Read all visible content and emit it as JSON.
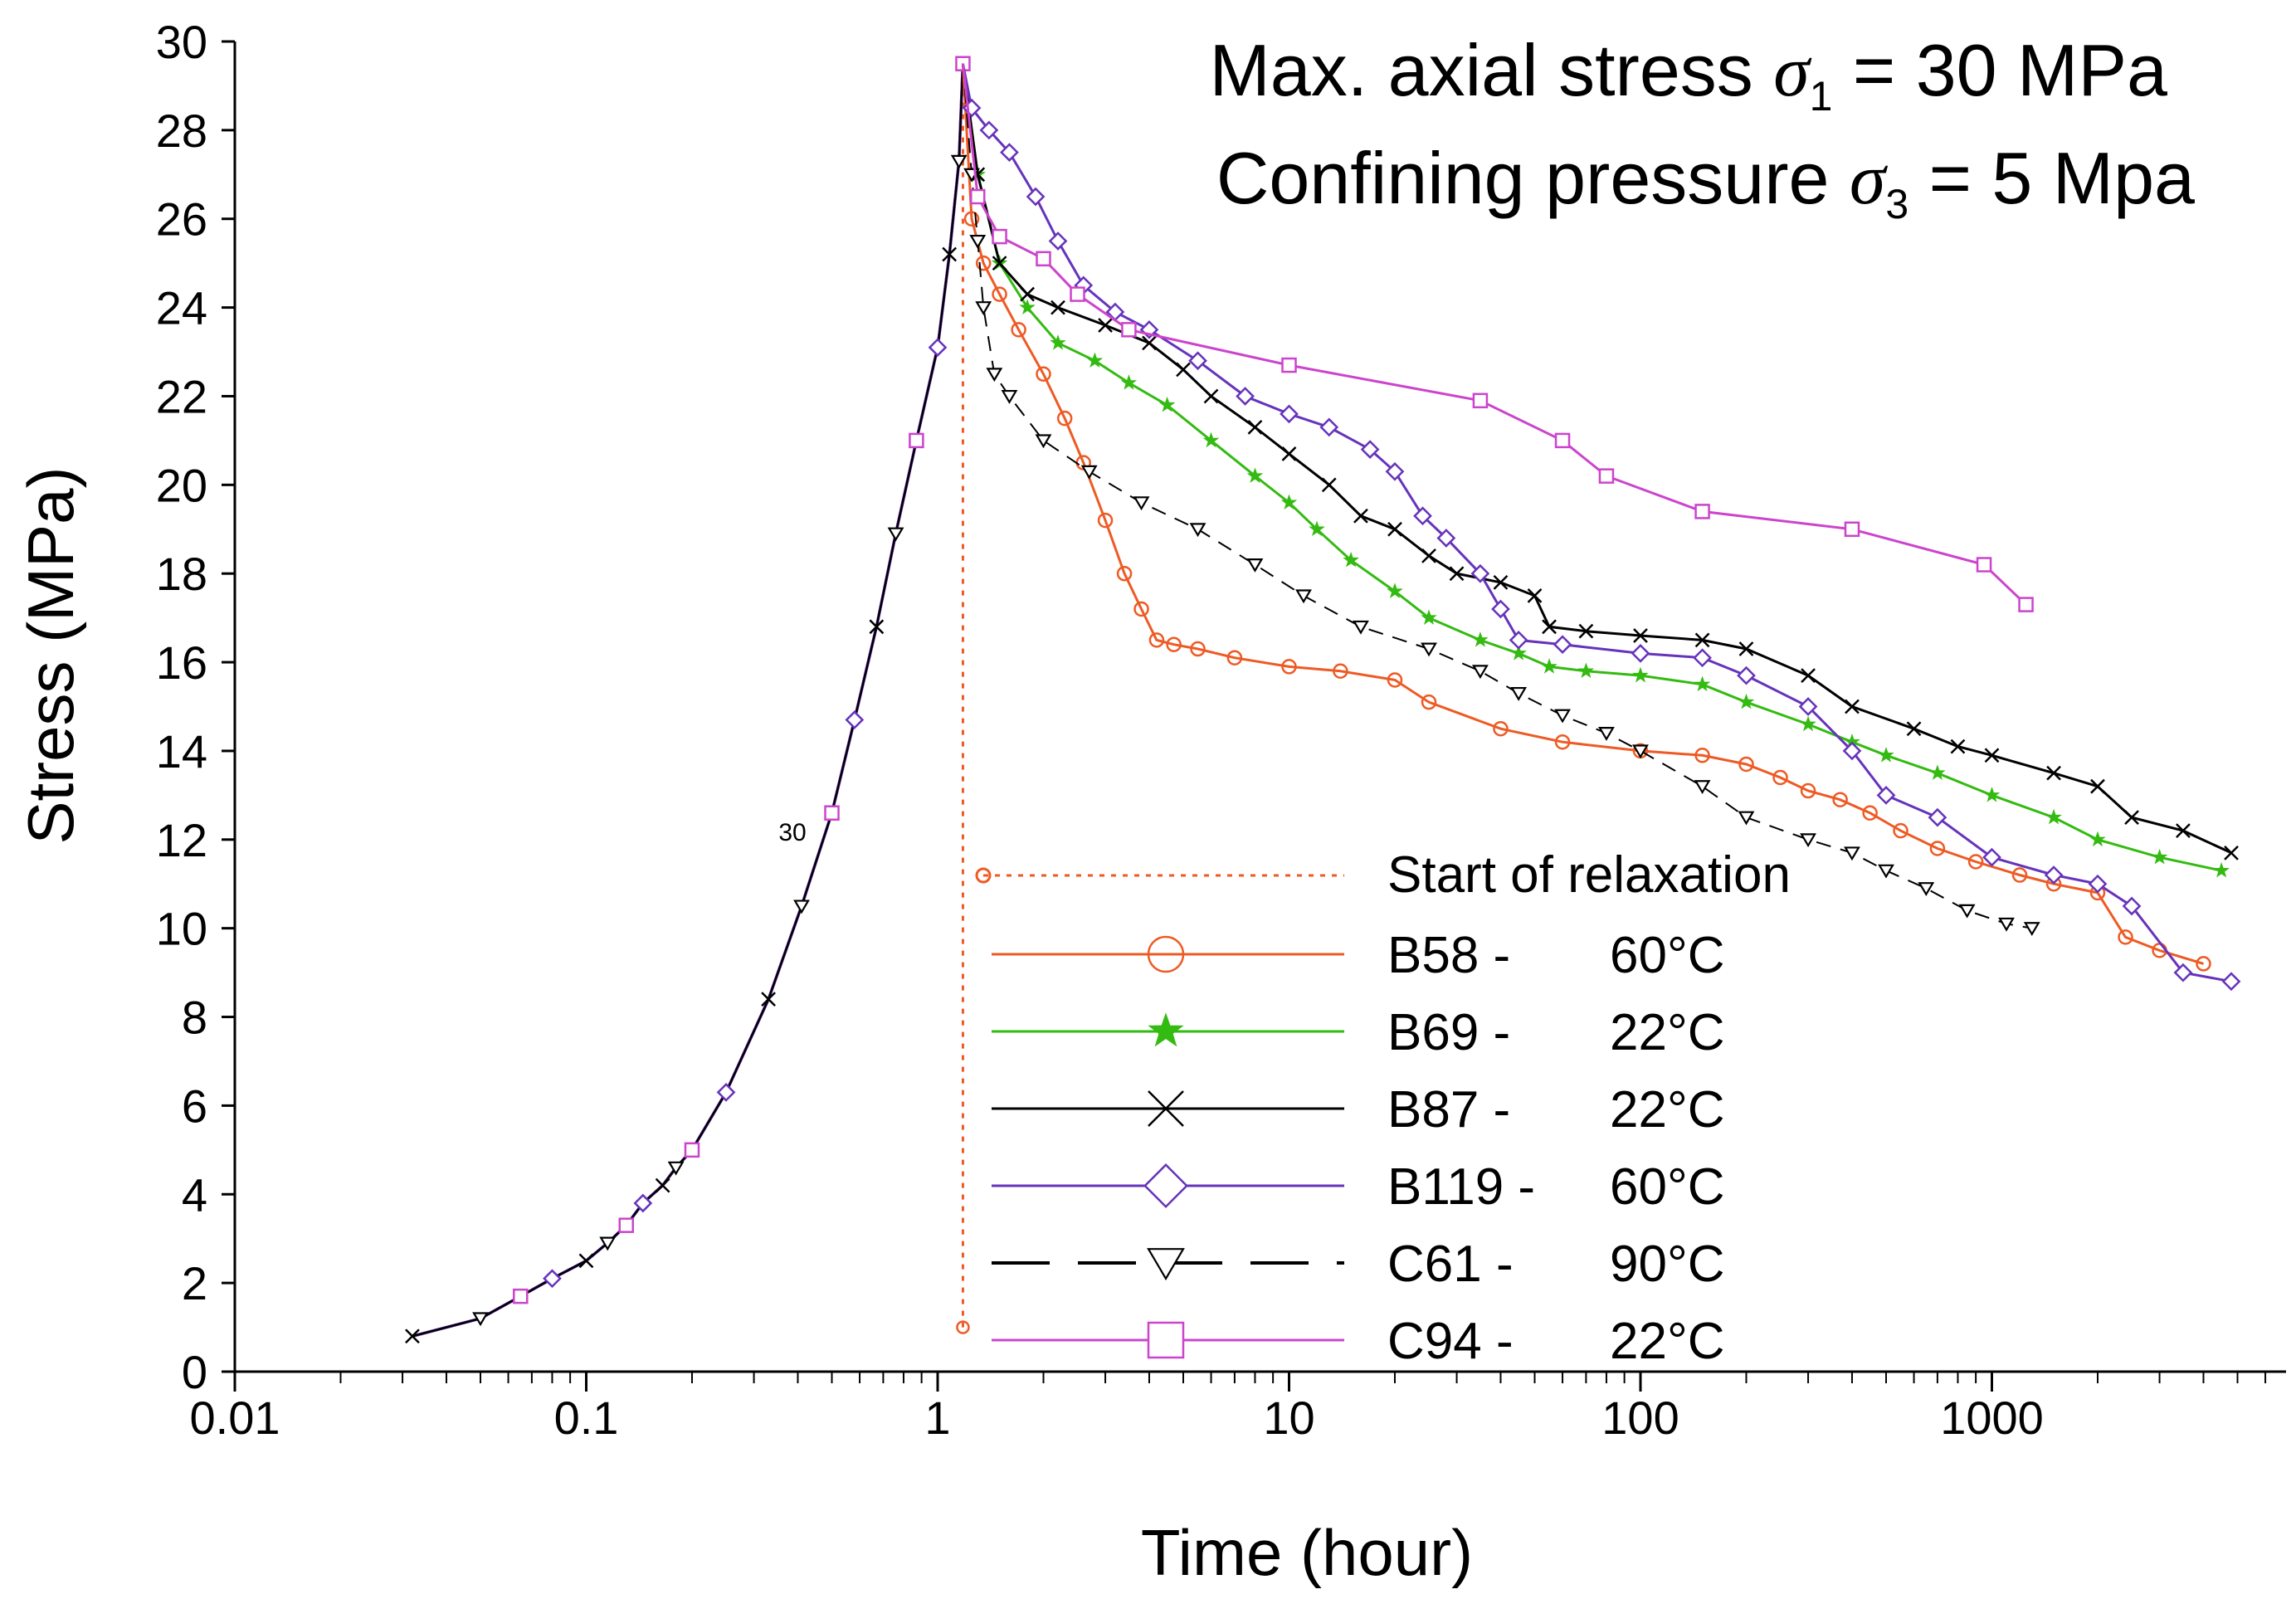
{
  "chart_data": {
    "type": "line",
    "xscale": "log",
    "xlim": [
      0.01,
      6000
    ],
    "ylim": [
      0,
      30
    ],
    "xlabel": "Time (hour)",
    "ylabel": "Stress (MPa)",
    "xticks": [
      0.01,
      0.1,
      1,
      10,
      100,
      1000
    ],
    "xtick_labels": [
      "0.01",
      "0.1",
      "1",
      "10",
      "100",
      "1000"
    ],
    "yticks": [
      0,
      2,
      4,
      6,
      8,
      10,
      12,
      14,
      16,
      18,
      20,
      22,
      24,
      26,
      28,
      30
    ],
    "ytick_labels": [
      "0",
      "2",
      "4",
      "6",
      "8",
      "10",
      "12",
      "14",
      "16",
      "18",
      "20",
      "22",
      "24",
      "26",
      "28",
      "30"
    ],
    "annotations": {
      "line1_prefix": "Max. axial stress ",
      "line1_sym": "σ",
      "line1_sub": "1",
      "line1_suffix": " = 30 MPa",
      "line2_prefix": "Confining pressure ",
      "line2_sym": "σ",
      "line2_sub": "3",
      "line2_suffix": " = 5 Mpa",
      "stray_label": "30"
    },
    "relaxation_marker": {
      "name": "Start of relaxation",
      "x": [
        1.18,
        1.18
      ],
      "y": [
        1.0,
        29.8
      ],
      "color": "#ee5a24"
    },
    "loading": {
      "x": [
        0.032,
        0.05,
        0.065,
        0.08,
        0.1,
        0.115,
        0.13,
        0.145,
        0.165,
        0.18,
        0.2,
        0.25,
        0.33,
        0.41,
        0.5,
        0.58,
        0.67,
        0.76,
        0.87,
        1.0,
        1.08,
        1.15,
        1.18
      ],
      "y": [
        0.8,
        1.2,
        1.7,
        2.1,
        2.5,
        2.9,
        3.3,
        3.8,
        4.2,
        4.6,
        5.0,
        6.3,
        8.4,
        10.5,
        12.6,
        14.7,
        16.8,
        18.9,
        21.0,
        23.1,
        25.2,
        27.3,
        29.5
      ]
    },
    "series": [
      {
        "name": "B58",
        "label_id": "B58 -",
        "label_temp": "60°C",
        "color": "#ee5a24",
        "marker": "circle",
        "dash": "",
        "x": [
          1.18,
          1.25,
          1.35,
          1.5,
          1.7,
          2.0,
          2.3,
          2.6,
          3.0,
          3.4,
          3.8,
          4.2,
          4.7,
          5.5,
          7.0,
          10,
          14,
          20,
          25,
          40,
          60,
          100,
          150,
          200,
          250,
          300,
          370,
          450,
          550,
          700,
          900,
          1200,
          1500,
          2000,
          2400,
          3000,
          4000
        ],
        "y": [
          29.5,
          26.0,
          25.0,
          24.3,
          23.5,
          22.5,
          21.5,
          20.5,
          19.2,
          18.0,
          17.2,
          16.5,
          16.4,
          16.3,
          16.1,
          15.9,
          15.8,
          15.6,
          15.1,
          14.5,
          14.2,
          14.0,
          13.9,
          13.7,
          13.4,
          13.1,
          12.9,
          12.6,
          12.2,
          11.8,
          11.5,
          11.2,
          11.0,
          10.8,
          9.8,
          9.5,
          9.2
        ]
      },
      {
        "name": "B69",
        "label_id": "B69 -",
        "label_temp": "22°C",
        "color": "#33bb11",
        "marker": "star",
        "dash": "",
        "x": [
          1.18,
          1.3,
          1.5,
          1.8,
          2.2,
          2.8,
          3.5,
          4.5,
          6.0,
          8.0,
          10,
          12,
          15,
          20,
          25,
          35,
          45,
          55,
          70,
          100,
          150,
          200,
          300,
          400,
          500,
          700,
          1000,
          1500,
          2000,
          3000,
          4500
        ],
        "y": [
          29.5,
          27.0,
          25.0,
          24.0,
          23.2,
          22.8,
          22.3,
          21.8,
          21.0,
          20.2,
          19.6,
          19.0,
          18.3,
          17.6,
          17.0,
          16.5,
          16.2,
          15.9,
          15.8,
          15.7,
          15.5,
          15.1,
          14.6,
          14.2,
          13.9,
          13.5,
          13.0,
          12.5,
          12.0,
          11.6,
          11.3
        ]
      },
      {
        "name": "B87",
        "label_id": "B87 -",
        "label_temp": "22°C",
        "color": "#000000",
        "marker": "x",
        "dash": "",
        "x": [
          1.18,
          1.3,
          1.5,
          1.8,
          2.2,
          3.0,
          4.0,
          5.0,
          6.0,
          8.0,
          10,
          13,
          16,
          20,
          25,
          30,
          40,
          50,
          55,
          70,
          100,
          150,
          200,
          300,
          400,
          600,
          800,
          1000,
          1500,
          2000,
          2500,
          3500,
          4800
        ],
        "y": [
          29.5,
          27.0,
          25.0,
          24.3,
          24.0,
          23.6,
          23.2,
          22.6,
          22.0,
          21.3,
          20.7,
          20.0,
          19.3,
          19.0,
          18.4,
          18.0,
          17.8,
          17.5,
          16.8,
          16.7,
          16.6,
          16.5,
          16.3,
          15.7,
          15.0,
          14.5,
          14.1,
          13.9,
          13.5,
          13.2,
          12.5,
          12.2,
          11.7
        ]
      },
      {
        "name": "B119",
        "label_id": "B119 -",
        "label_temp": "60°C",
        "color": "#6633bb",
        "marker": "diamond",
        "dash": "",
        "x": [
          1.18,
          1.25,
          1.4,
          1.6,
          1.9,
          2.2,
          2.6,
          3.2,
          4.0,
          5.5,
          7.5,
          10,
          13,
          17,
          20,
          24,
          28,
          35,
          40,
          45,
          60,
          100,
          150,
          200,
          300,
          400,
          500,
          700,
          1000,
          1500,
          2000,
          2500,
          3500,
          4800
        ],
        "y": [
          29.5,
          28.5,
          28.0,
          27.5,
          26.5,
          25.5,
          24.5,
          23.9,
          23.5,
          22.8,
          22.0,
          21.6,
          21.3,
          20.8,
          20.3,
          19.3,
          18.8,
          18.0,
          17.2,
          16.5,
          16.4,
          16.2,
          16.1,
          15.7,
          15.0,
          14.0,
          13.0,
          12.5,
          11.6,
          11.2,
          11.0,
          10.5,
          9.0,
          8.8
        ]
      },
      {
        "name": "C61",
        "label_id": "C61 -",
        "label_temp": "90°C",
        "color": "#000000",
        "marker": "tri",
        "dash": "18,12",
        "x": [
          1.18,
          1.25,
          1.3,
          1.35,
          1.45,
          1.6,
          2.0,
          2.7,
          3.8,
          5.5,
          8.0,
          11,
          16,
          25,
          35,
          45,
          60,
          80,
          100,
          150,
          200,
          300,
          400,
          500,
          650,
          850,
          1100,
          1300
        ],
        "y": [
          29.5,
          27.0,
          25.5,
          24.0,
          22.5,
          22.0,
          21.0,
          20.3,
          19.6,
          19.0,
          18.2,
          17.5,
          16.8,
          16.3,
          15.8,
          15.3,
          14.8,
          14.4,
          14.0,
          13.2,
          12.5,
          12.0,
          11.7,
          11.3,
          10.9,
          10.4,
          10.1,
          10.0
        ]
      },
      {
        "name": "C94",
        "label_id": "C94 -",
        "label_temp": "22°C",
        "color": "#cc44cc",
        "marker": "square",
        "dash": "",
        "x": [
          1.18,
          1.3,
          1.5,
          2.0,
          2.5,
          3.5,
          10,
          35,
          60,
          80,
          150,
          400,
          950,
          1250
        ],
        "y": [
          29.5,
          26.5,
          25.6,
          25.1,
          24.3,
          23.5,
          22.7,
          21.9,
          21.0,
          20.2,
          19.4,
          19.0,
          18.2,
          17.3
        ]
      }
    ],
    "legend": {
      "position": "bottom-center",
      "relaxation_label": "Start of relaxation"
    }
  }
}
